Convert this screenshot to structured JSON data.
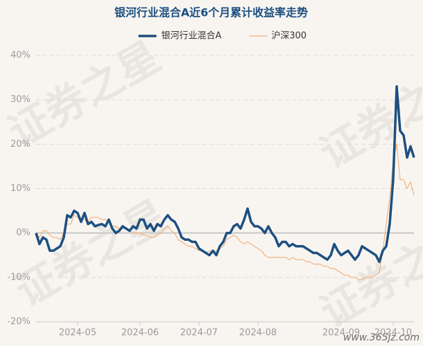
{
  "chart_data": {
    "type": "line",
    "title": "银河行业混合A近6个月累计收益率走势",
    "watermark": "证券之星",
    "credit": "www.365jz.com",
    "legend": "top",
    "grid": true,
    "categories": [
      null,
      null,
      null,
      null,
      null,
      null,
      null,
      null,
      null,
      null,
      null,
      null,
      "2024-05",
      null,
      null,
      null,
      null,
      null,
      null,
      null,
      null,
      null,
      null,
      null,
      null,
      null,
      null,
      null,
      null,
      null,
      "2024-06",
      null,
      null,
      null,
      null,
      null,
      null,
      null,
      null,
      null,
      null,
      null,
      null,
      null,
      null,
      null,
      null,
      "2024-07",
      null,
      null,
      null,
      null,
      null,
      null,
      null,
      null,
      null,
      null,
      null,
      null,
      null,
      null,
      null,
      null,
      "2024-08",
      null,
      null,
      null,
      null,
      null,
      null,
      null,
      null,
      null,
      null,
      null,
      null,
      null,
      null,
      null,
      null,
      null,
      null,
      null,
      null,
      null,
      null,
      null,
      "2024-09",
      null,
      null,
      null,
      null,
      null,
      null,
      null,
      null,
      null,
      null,
      null,
      null,
      null,
      null,
      "2024-10",
      null,
      null,
      null,
      null,
      null,
      null
    ],
    "series": [
      {
        "name": "银河行业混合A",
        "color": "#1d4f80",
        "width": 3.5,
        "values": [
          0,
          -2.5,
          -1,
          -1.5,
          -4,
          -4,
          -3.5,
          -3,
          -1,
          4,
          3.5,
          5,
          4.5,
          2.5,
          4.5,
          2,
          2.5,
          1.5,
          1.8,
          2,
          1.5,
          3,
          1,
          0,
          0.5,
          1.5,
          1,
          0.5,
          1.5,
          1,
          3,
          3,
          1,
          2,
          0.5,
          2,
          1.5,
          3,
          4,
          3,
          2.5,
          1,
          -1,
          -1.5,
          -1.5,
          -2,
          -2,
          -3.5,
          -4,
          -4.5,
          -5,
          -4,
          -5,
          -3,
          -2,
          0,
          0,
          1.5,
          2,
          1,
          3,
          5.5,
          2.5,
          1.5,
          1.5,
          1,
          0,
          1.5,
          0,
          -1,
          -3,
          -2,
          -2,
          -3,
          -2.5,
          -3,
          -3,
          -3,
          -3.5,
          -4,
          -4.5,
          -4.5,
          -5,
          -5.5,
          -6,
          -5,
          -2.5,
          -4,
          -5,
          -4.5,
          -4,
          -5,
          -6,
          -5,
          -3,
          -3.5,
          -4,
          -4.5,
          -5,
          -6.5,
          -4,
          -3,
          2,
          12,
          33,
          23,
          22,
          17,
          19.5,
          17
        ]
      },
      {
        "name": "沪深300",
        "color": "#f2b27e",
        "width": 1.2,
        "values": [
          0,
          -1,
          0.5,
          0.5,
          -0.5,
          -1,
          -1,
          -1.5,
          0,
          2,
          2,
          4,
          3.5,
          3,
          3,
          2.5,
          3.5,
          3.5,
          3.5,
          3,
          3,
          2.5,
          1.5,
          1.5,
          1,
          1,
          1,
          0.5,
          0,
          0,
          0,
          -0.5,
          -0.5,
          -1,
          -1,
          -0.5,
          0,
          1,
          1.5,
          0.5,
          0,
          -1.5,
          -2,
          -2.5,
          -3,
          -3,
          -3.5,
          -4,
          -4,
          -4.5,
          -4,
          -4.5,
          -4,
          -3.5,
          -3,
          -1.5,
          -1,
          -0.5,
          -1,
          -2,
          -2.5,
          -2,
          -2.5,
          -3,
          -3.5,
          -4,
          -5,
          -5.5,
          -5.5,
          -5.5,
          -5.5,
          -5.5,
          -5.5,
          -6,
          -5.5,
          -6,
          -6,
          -6,
          -6.5,
          -6.5,
          -7,
          -7,
          -7,
          -7.5,
          -7.5,
          -8,
          -8,
          -8.5,
          -9,
          -9.5,
          -9.5,
          -10,
          -10,
          -10.5,
          -10.5,
          -10,
          -10,
          -10,
          -9.5,
          -9,
          -4,
          2,
          8,
          16,
          20,
          12,
          12,
          10,
          11.5,
          8.5
        ]
      }
    ],
    "ylim": [
      -20,
      40
    ],
    "yticks": [
      {
        "value": -20,
        "label": "-20%"
      },
      {
        "value": -10,
        "label": "-10%"
      },
      {
        "value": 0,
        "label": "0%"
      },
      {
        "value": 10,
        "label": "10%"
      },
      {
        "value": 20,
        "label": "20%"
      },
      {
        "value": 30,
        "label": "30%"
      },
      {
        "value": 40,
        "label": "40%"
      }
    ]
  }
}
